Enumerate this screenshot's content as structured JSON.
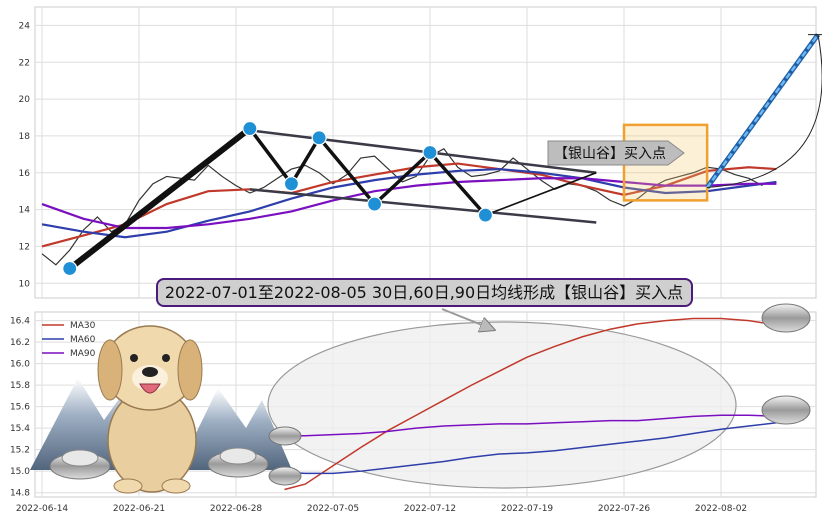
{
  "chart_data": [
    {
      "type": "line",
      "panel": "top",
      "ylim": [
        9.2,
        25
      ],
      "yticks": [
        "10",
        "12",
        "14",
        "16",
        "18",
        "20",
        "22",
        "24"
      ],
      "ytick_values": [
        10,
        12,
        14,
        16,
        18,
        20,
        22,
        24
      ],
      "x_range_days": [
        0,
        56
      ],
      "grid": true,
      "series": [
        {
          "key": "price",
          "color": "#333333",
          "x": [
            0,
            1,
            2,
            3,
            4,
            5,
            6,
            7,
            8,
            9,
            10,
            11,
            12,
            13,
            14,
            15,
            16,
            17,
            18,
            19,
            20,
            21,
            22,
            23,
            24,
            25,
            26,
            27,
            28,
            29,
            30,
            31,
            32,
            33,
            34,
            35,
            36,
            37,
            38,
            39,
            40,
            41,
            42,
            43,
            44,
            45,
            46,
            47,
            48,
            49,
            50,
            51,
            52
          ],
          "y": [
            11.6,
            11.0,
            11.8,
            12.9,
            13.6,
            12.8,
            13.2,
            14.5,
            15.4,
            15.8,
            15.7,
            15.6,
            16.4,
            15.8,
            15.3,
            14.9,
            15.2,
            15.7,
            16.2,
            16.4,
            16.0,
            15.4,
            15.9,
            16.8,
            16.9,
            16.2,
            15.5,
            15.8,
            16.9,
            17.3,
            16.3,
            15.8,
            15.9,
            16.1,
            16.8,
            16.2,
            15.6,
            15.1,
            15.4,
            15.3,
            15.0,
            14.5,
            14.2,
            14.6,
            15.2,
            15.6,
            15.8,
            16.0,
            16.3,
            16.2,
            15.9,
            15.7,
            15.3
          ]
        },
        {
          "key": "ma30",
          "color": "#c0392b",
          "x": [
            0,
            3,
            6,
            9,
            12,
            15,
            18,
            21,
            24,
            27,
            30,
            33,
            36,
            39,
            42,
            45,
            48,
            51,
            53
          ],
          "y": [
            12.0,
            12.6,
            13.2,
            14.3,
            15.0,
            15.1,
            14.9,
            15.5,
            15.9,
            16.3,
            16.5,
            16.2,
            15.9,
            15.3,
            14.8,
            15.3,
            16.1,
            16.3,
            16.2
          ]
        },
        {
          "key": "ma60",
          "color": "#2e3eaa",
          "x": [
            0,
            3,
            6,
            9,
            12,
            15,
            18,
            21,
            24,
            27,
            30,
            33,
            36,
            39,
            42,
            45,
            48,
            51,
            53
          ],
          "y": [
            13.2,
            12.8,
            12.5,
            12.8,
            13.4,
            13.9,
            14.6,
            15.2,
            15.6,
            15.9,
            16.1,
            16.2,
            16.0,
            15.7,
            15.2,
            14.9,
            15.0,
            15.3,
            15.5
          ]
        },
        {
          "key": "ma90",
          "color": "#7a0fc0",
          "x": [
            0,
            3,
            6,
            9,
            12,
            15,
            18,
            21,
            24,
            27,
            30,
            33,
            36,
            39,
            42,
            45,
            48,
            51,
            53
          ],
          "y": [
            14.3,
            13.5,
            13.0,
            13.0,
            13.2,
            13.5,
            13.9,
            14.5,
            15.0,
            15.3,
            15.5,
            15.6,
            15.7,
            15.7,
            15.5,
            15.3,
            15.3,
            15.4,
            15.4
          ]
        }
      ],
      "pattern_points": [
        {
          "x": 2,
          "y": 10.8
        },
        {
          "x": 15,
          "y": 18.4
        },
        {
          "x": 18,
          "y": 15.4
        },
        {
          "x": 20,
          "y": 17.9
        },
        {
          "x": 24,
          "y": 14.3
        },
        {
          "x": 28,
          "y": 17.1
        },
        {
          "x": 32,
          "y": 13.7
        }
      ],
      "channel_upper": [
        [
          15,
          18.3
        ],
        [
          40,
          16.0
        ]
      ],
      "channel_lower": [
        [
          15,
          15.1
        ],
        [
          40,
          13.3
        ]
      ],
      "projection": {
        "from": [
          48,
          15.2
        ],
        "to": [
          56,
          23.5
        ]
      },
      "highlight_box": {
        "x0": 42,
        "x1": 48,
        "y0": 14.5,
        "y1": 18.6
      },
      "callout": "【银山谷】买入点",
      "banner": "2022-07-01至2022-08-05 30日,60日,90日均线形成【银山谷】买入点"
    },
    {
      "type": "line",
      "panel": "bottom",
      "ylim": [
        14.76,
        16.48
      ],
      "yticks": [
        "14.8",
        "15.0",
        "15.2",
        "15.4",
        "15.6",
        "15.8",
        "16.0",
        "16.2",
        "16.4"
      ],
      "ytick_values": [
        14.8,
        15.0,
        15.2,
        15.4,
        15.6,
        15.8,
        16.0,
        16.2,
        16.4
      ],
      "x_range_days": [
        0,
        56
      ],
      "xticks": [
        "2022-06-14",
        "2022-06-21",
        "2022-06-28",
        "2022-07-05",
        "2022-07-12",
        "2022-07-19",
        "2022-07-26",
        "2022-08-02"
      ],
      "xtick_values": [
        0,
        7,
        14,
        21,
        28,
        35,
        42,
        49
      ],
      "grid": true,
      "legend": [
        "MA30",
        "MA60",
        "MA90"
      ],
      "legend_position": "top-left",
      "series": [
        {
          "name": "MA30",
          "color": "#c0392b",
          "x": [
            17.5,
            19,
            21,
            23,
            25,
            27,
            29,
            31,
            33,
            35,
            37,
            39,
            41,
            43,
            45,
            47,
            49,
            51,
            53,
            55
          ],
          "y": [
            14.83,
            14.88,
            15.05,
            15.22,
            15.38,
            15.52,
            15.66,
            15.8,
            15.93,
            16.06,
            16.16,
            16.25,
            16.32,
            16.37,
            16.4,
            16.42,
            16.42,
            16.4,
            16.36,
            16.34
          ]
        },
        {
          "name": "MA60",
          "color": "#2e3eaa",
          "x": [
            17.5,
            19,
            21,
            23,
            25,
            27,
            29,
            31,
            33,
            35,
            37,
            39,
            41,
            43,
            45,
            47,
            49,
            51,
            53,
            55
          ],
          "y": [
            14.99,
            14.98,
            14.98,
            15.0,
            15.03,
            15.06,
            15.09,
            15.13,
            15.16,
            15.17,
            15.19,
            15.22,
            15.25,
            15.28,
            15.31,
            15.35,
            15.39,
            15.42,
            15.45,
            15.48
          ]
        },
        {
          "name": "MA90",
          "color": "#7a0fc0",
          "x": [
            17.5,
            19,
            21,
            23,
            25,
            27,
            29,
            31,
            33,
            35,
            37,
            39,
            41,
            43,
            45,
            47,
            49,
            51,
            53,
            55
          ],
          "y": [
            15.33,
            15.33,
            15.34,
            15.35,
            15.37,
            15.4,
            15.42,
            15.43,
            15.44,
            15.44,
            15.45,
            15.46,
            15.47,
            15.47,
            15.49,
            15.51,
            15.52,
            15.52,
            15.51,
            15.49
          ]
        }
      ]
    }
  ]
}
